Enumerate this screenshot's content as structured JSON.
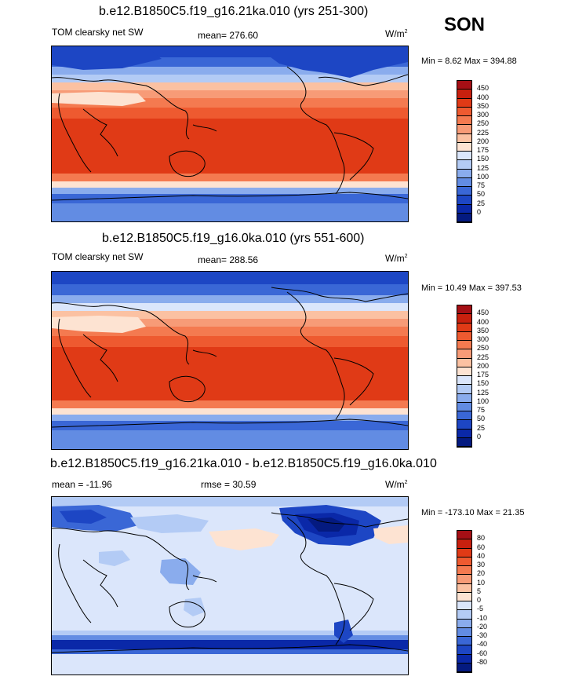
{
  "season": "SON",
  "panels": [
    {
      "title": "b.e12.B1850C5.f19_g16.21ka.010 (yrs 251-300)",
      "left_label": "TOM clearsky net SW",
      "stat_label": "mean= 276.60",
      "units": "W/m",
      "units_exp": "2",
      "minmax": "Min =   8.62 Max = 394.88",
      "legend_labels": [
        "450",
        "400",
        "350",
        "300",
        "250",
        "225",
        "200",
        "175",
        "150",
        "125",
        "100",
        "75",
        "50",
        "25",
        "0"
      ],
      "legend_colors": [
        "#a50f15",
        "#c8200e",
        "#e03a16",
        "#ee5a30",
        "#f47a50",
        "#f79b77",
        "#fbc1a2",
        "#fde3d2",
        "#dbe6fb",
        "#b3cbf5",
        "#8aaced",
        "#628ce3",
        "#3a67d6",
        "#1d46c4",
        "#0a28a8",
        "#041a80"
      ]
    },
    {
      "title": "b.e12.B1850C5.f19_g16.0ka.010 (yrs 551-600)",
      "left_label": "TOM clearsky net SW",
      "stat_label": "mean= 288.56",
      "units": "W/m",
      "units_exp": "2",
      "minmax": "Min =  10.49 Max = 397.53",
      "legend_labels": [
        "450",
        "400",
        "350",
        "300",
        "250",
        "225",
        "200",
        "175",
        "150",
        "125",
        "100",
        "75",
        "50",
        "25",
        "0"
      ],
      "legend_colors": [
        "#a50f15",
        "#c8200e",
        "#e03a16",
        "#ee5a30",
        "#f47a50",
        "#f79b77",
        "#fbc1a2",
        "#fde3d2",
        "#dbe6fb",
        "#b3cbf5",
        "#8aaced",
        "#628ce3",
        "#3a67d6",
        "#1d46c4",
        "#0a28a8",
        "#041a80"
      ]
    },
    {
      "title": "b.e12.B1850C5.f19_g16.21ka.010 - b.e12.B1850C5.f19_g16.0ka.010",
      "left_label": "mean = -11.96",
      "stat_label": "rmse =  30.59",
      "units": "W/m",
      "units_exp": "2",
      "minmax": "Min = -173.10 Max =  21.35",
      "legend_labels": [
        "80",
        "60",
        "40",
        "30",
        "20",
        "10",
        "5",
        "0",
        "-5",
        "-10",
        "-20",
        "-30",
        "-40",
        "-60",
        "-80"
      ],
      "legend_colors": [
        "#a50f15",
        "#c8200e",
        "#e03a16",
        "#ee5a30",
        "#f47a50",
        "#f79b77",
        "#fbc1a2",
        "#fde3d2",
        "#dbe6fb",
        "#b3cbf5",
        "#8aaced",
        "#628ce3",
        "#3a67d6",
        "#1d46c4",
        "#0a28a8",
        "#041a80"
      ]
    }
  ]
}
